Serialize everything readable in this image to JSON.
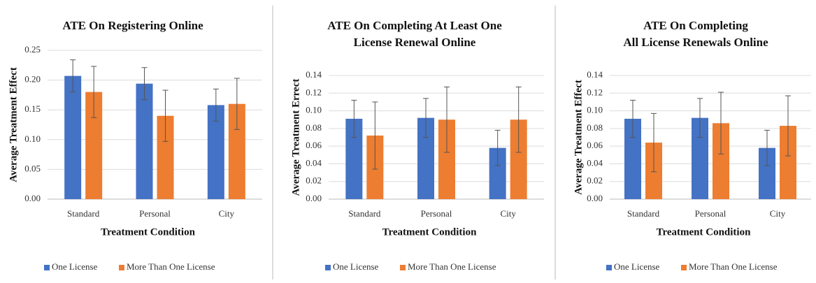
{
  "chart_data": [
    {
      "type": "bar",
      "title": [
        "ATE On Registering Online"
      ],
      "categories": [
        "Standard",
        "Personal",
        "City"
      ],
      "series": [
        {
          "name": "One License",
          "color": "#4472c4",
          "values": [
            0.207,
            0.194,
            0.158
          ],
          "errors": [
            0.027,
            0.027,
            0.027
          ]
        },
        {
          "name": "More Than One License",
          "color": "#ed7d31",
          "values": [
            0.18,
            0.14,
            0.16
          ],
          "errors": [
            0.043,
            0.043,
            0.043
          ]
        }
      ],
      "ylim": [
        0,
        0.25
      ],
      "yticks": [
        {
          "value": 0,
          "label": "0.00"
        },
        0.05,
        {
          "value": 0.1,
          "label": "0.10"
        },
        0.15,
        {
          "value": 0.2,
          "label": "0.20"
        },
        0.25
      ],
      "xlabel": "Treatment Condition",
      "ylabel": "Average Treatment Effect",
      "grid": true,
      "legend": "bottom"
    },
    {
      "type": "bar",
      "title": [
        "ATE On Completing At Least One",
        "License Renewal Online"
      ],
      "categories": [
        "Standard",
        "Personal",
        "City"
      ],
      "series": [
        {
          "name": "One License",
          "color": "#4472c4",
          "values": [
            0.091,
            0.092,
            0.058
          ],
          "errors": [
            0.021,
            0.022,
            0.02
          ]
        },
        {
          "name": "More Than One License",
          "color": "#ed7d31",
          "values": [
            0.072,
            0.09,
            0.09
          ],
          "errors": [
            0.038,
            0.037,
            0.037
          ]
        }
      ],
      "ylim": [
        0,
        0.14
      ],
      "yticks": [
        {
          "value": 0,
          "label": "0.00"
        },
        0.02,
        0.04,
        0.06,
        0.08,
        {
          "value": 0.1,
          "label": "0.10"
        },
        0.12,
        0.14
      ],
      "xlabel": "Treatment Condition",
      "ylabel": "Average Treatment Errect",
      "grid": true,
      "legend": "bottom"
    },
    {
      "type": "bar",
      "title": [
        "ATE On Completing",
        "All License Renewals Online"
      ],
      "categories": [
        "Standard",
        "Personal",
        "City"
      ],
      "series": [
        {
          "name": "One License",
          "color": "#4472c4",
          "values": [
            0.091,
            0.092,
            0.058
          ],
          "errors": [
            0.021,
            0.022,
            0.02
          ]
        },
        {
          "name": "More Than One License",
          "color": "#ed7d31",
          "values": [
            0.064,
            0.086,
            0.083
          ],
          "errors": [
            0.033,
            0.035,
            0.034
          ]
        }
      ],
      "ylim": [
        0,
        0.14
      ],
      "yticks": [
        {
          "value": 0,
          "label": "0.00"
        },
        0.02,
        0.04,
        0.06,
        0.08,
        {
          "value": 0.1,
          "label": "0.10"
        },
        0.12,
        0.14
      ],
      "xlabel": "Treatment Condition",
      "ylabel": "Average Treatment  Effect",
      "grid": true,
      "legend": "bottom"
    }
  ]
}
